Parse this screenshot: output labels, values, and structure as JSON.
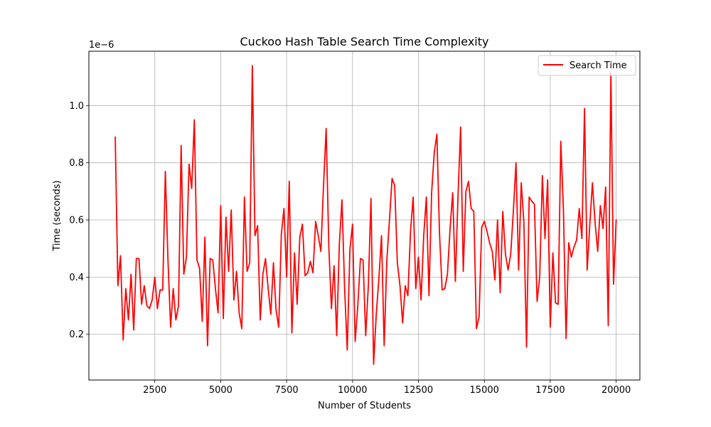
{
  "chart_data": {
    "type": "line",
    "title": "Cuckoo Hash Table Search Time Complexity",
    "xlabel": "Number of Students",
    "ylabel": "Time (seconds)",
    "y_offset_label": "1e−6",
    "y_scale_factor": 1e-06,
    "xlim": [
      0,
      20900
    ],
    "ylim": [
      4e-08,
      1.19e-06
    ],
    "x_ticks": [
      2500,
      5000,
      7500,
      10000,
      12500,
      15000,
      17500,
      20000
    ],
    "x_tick_labels": [
      "2500",
      "5000",
      "7500",
      "10000",
      "12500",
      "15000",
      "17500",
      "20000"
    ],
    "y_ticks": [
      2e-07,
      4e-07,
      6e-07,
      8e-07,
      1e-06
    ],
    "y_tick_labels": [
      "0.2",
      "0.4",
      "0.6",
      "0.8",
      "1.0"
    ],
    "grid": true,
    "legend_position": "top-right",
    "series": [
      {
        "name": "Search Time",
        "color": "#ff0000",
        "x": [
          1000,
          1100,
          1200,
          1300,
          1400,
          1500,
          1600,
          1700,
          1800,
          1900,
          2000,
          2100,
          2200,
          2300,
          2400,
          2500,
          2600,
          2700,
          2800,
          2900,
          3000,
          3100,
          3200,
          3300,
          3400,
          3500,
          3600,
          3700,
          3800,
          3900,
          4000,
          4100,
          4200,
          4300,
          4400,
          4500,
          4600,
          4700,
          4800,
          4900,
          5000,
          5100,
          5200,
          5300,
          5400,
          5500,
          5600,
          5700,
          5800,
          5900,
          6000,
          6100,
          6200,
          6300,
          6400,
          6500,
          6600,
          6700,
          6800,
          6900,
          7000,
          7100,
          7200,
          7300,
          7400,
          7500,
          7600,
          7700,
          7800,
          7900,
          8000,
          8100,
          8200,
          8300,
          8400,
          8500,
          8600,
          8700,
          8800,
          8900,
          9000,
          9100,
          9200,
          9300,
          9400,
          9500,
          9600,
          9700,
          9800,
          9900,
          10000,
          10100,
          10200,
          10300,
          10400,
          10500,
          10600,
          10700,
          10800,
          10900,
          11000,
          11100,
          11200,
          11300,
          11400,
          11500,
          11600,
          11700,
          11800,
          11900,
          12000,
          12100,
          12200,
          12300,
          12400,
          12500,
          12600,
          12700,
          12800,
          12900,
          13000,
          13100,
          13200,
          13300,
          13400,
          13500,
          13600,
          13700,
          13800,
          13900,
          14000,
          14100,
          14200,
          14300,
          14400,
          14500,
          14600,
          14700,
          14800,
          14900,
          15000,
          15100,
          15200,
          15300,
          15400,
          15500,
          15600,
          15700,
          15800,
          15900,
          16000,
          16100,
          16200,
          16300,
          16400,
          16500,
          16600,
          16700,
          16800,
          16900,
          17000,
          17100,
          17200,
          17300,
          17400,
          17500,
          17600,
          17700,
          17800,
          17900,
          18000,
          18100,
          18200,
          18300,
          18400,
          18500,
          18600,
          18700,
          18800,
          18900,
          19000,
          19100,
          19200,
          19300,
          19400,
          19500,
          19600,
          19700,
          19800,
          19900,
          20000
        ],
        "y": [
          8.9e-07,
          3.7e-07,
          4.75e-07,
          1.8e-07,
          3.6e-07,
          2.5e-07,
          4.1e-07,
          2.15e-07,
          4.65e-07,
          4.65e-07,
          3.05e-07,
          3.7e-07,
          3e-07,
          2.9e-07,
          3.2e-07,
          4e-07,
          2.9e-07,
          3.55e-07,
          3.55e-07,
          7.7e-07,
          4.6e-07,
          2.25e-07,
          3.6e-07,
          2.5e-07,
          3e-07,
          8.6e-07,
          4.1e-07,
          4.7e-07,
          7.95e-07,
          7.1e-07,
          9.5e-07,
          4.6e-07,
          4.3e-07,
          2.45e-07,
          5.4e-07,
          1.6e-07,
          4.65e-07,
          4.6e-07,
          3.6e-07,
          2.75e-07,
          6.5e-07,
          2.55e-07,
          6.1e-07,
          4.2e-07,
          6.35e-07,
          3.2e-07,
          4.2e-07,
          2.75e-07,
          2.2e-07,
          6.8e-07,
          4.2e-07,
          4.5e-07,
          1.14e-06,
          5.45e-07,
          5.8e-07,
          2.5e-07,
          4.1e-07,
          4.65e-07,
          3.6e-07,
          2.7e-07,
          4.5e-07,
          2.85e-07,
          2.25e-07,
          5.5e-07,
          6.4e-07,
          4e-07,
          7.35e-07,
          2.05e-07,
          4.85e-07,
          3.05e-07,
          5.4e-07,
          5.85e-07,
          4.05e-07,
          4.15e-07,
          4.55e-07,
          4.15e-07,
          5.95e-07,
          5.45e-07,
          4.9e-07,
          7.2e-07,
          9.2e-07,
          5.1e-07,
          2.9e-07,
          4.4e-07,
          1.95e-07,
          5.15e-07,
          6.7e-07,
          3.6e-07,
          1.45e-07,
          4.95e-07,
          5.85e-07,
          1.75e-07,
          3e-07,
          4.65e-07,
          4.6e-07,
          1.95e-07,
          3.7e-07,
          6.75e-07,
          9.5e-08,
          2.7e-07,
          3.95e-07,
          5.45e-07,
          1.6e-07,
          4.55e-07,
          6e-07,
          7.45e-07,
          7.2e-07,
          4.5e-07,
          3.7e-07,
          2.4e-07,
          3.7e-07,
          3.35e-07,
          5.6e-07,
          6.8e-07,
          3.6e-07,
          4.7e-07,
          3.2e-07,
          5.45e-07,
          6.8e-07,
          3.35e-07,
          6.95e-07,
          8.35e-07,
          9e-07,
          5.5e-07,
          3.55e-07,
          3.6e-07,
          4.1e-07,
          5.7e-07,
          6.95e-07,
          3.85e-07,
          6.8e-07,
          9.25e-07,
          4.2e-07,
          7e-07,
          7.35e-07,
          6.4e-07,
          6.3e-07,
          2.2e-07,
          2.6e-07,
          5.75e-07,
          5.95e-07,
          5.6e-07,
          5.2e-07,
          4.9e-07,
          3.9e-07,
          6e-07,
          3.45e-07,
          6.3e-07,
          4.8e-07,
          4.25e-07,
          4.8e-07,
          6.3e-07,
          8e-07,
          4.25e-07,
          7.3e-07,
          5.9e-07,
          1.55e-07,
          6.8e-07,
          6.65e-07,
          6.55e-07,
          3.15e-07,
          4e-07,
          7.55e-07,
          5.35e-07,
          7.4e-07,
          2.25e-07,
          4.85e-07,
          3.1e-07,
          3.05e-07,
          8.75e-07,
          6.35e-07,
          1.85e-07,
          5.2e-07,
          4.7e-07,
          5.05e-07,
          5.3e-07,
          6.4e-07,
          5.35e-07,
          9.9e-07,
          4.25e-07,
          5.85e-07,
          7.3e-07,
          5.9e-07,
          4.9e-07,
          6.5e-07,
          5.7e-07,
          7.15e-07,
          2.3e-07,
          1.115e-06,
          3.75e-07,
          6e-07
        ]
      }
    ]
  }
}
